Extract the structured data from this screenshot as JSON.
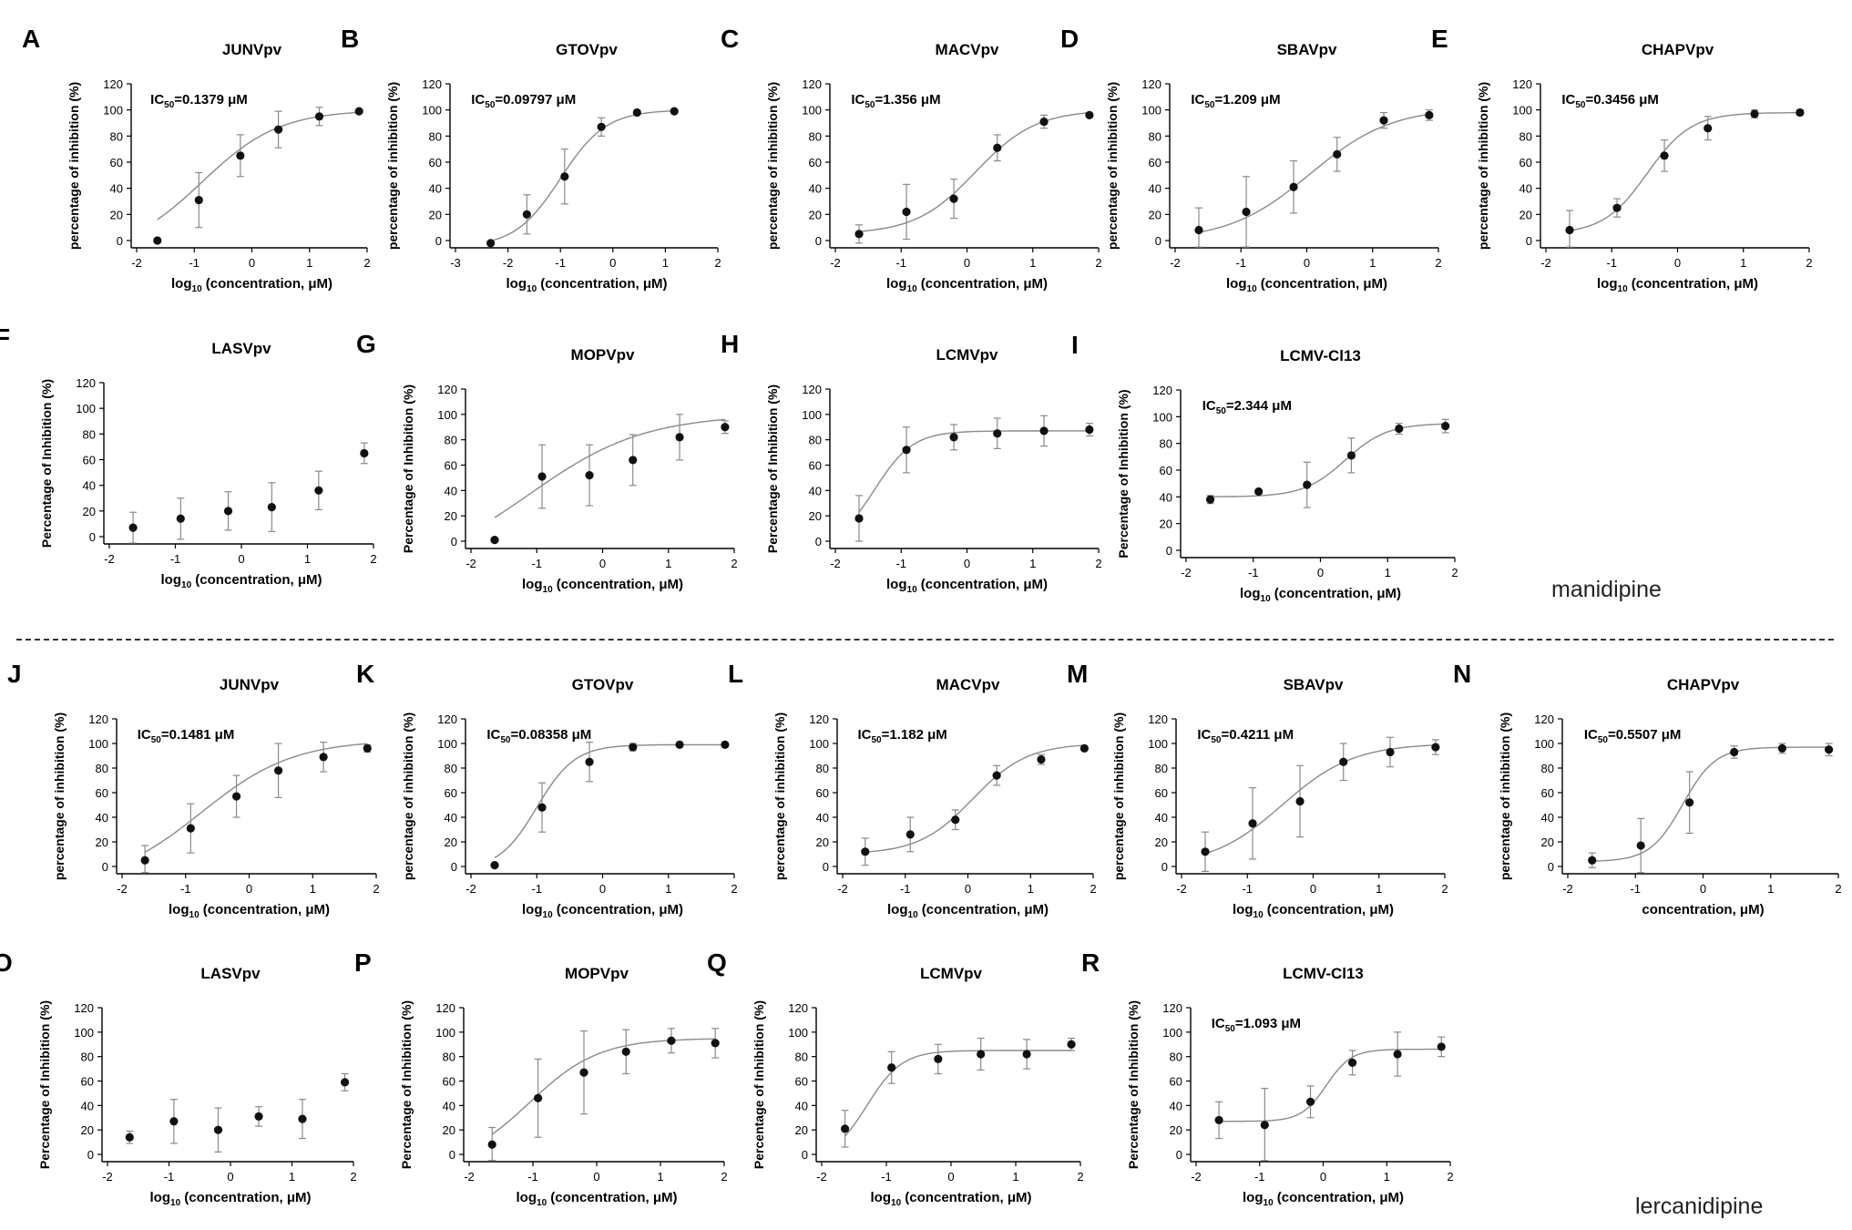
{
  "figure": {
    "drug_labels": {
      "top": "manidipine",
      "bottom": "lercanidipine"
    },
    "colors": {
      "curve": "#8a8a8a",
      "point": "#111111",
      "axis": "#000000",
      "errorbar": "#8a8a8a"
    }
  },
  "chart_data": [
    {
      "panel": "A",
      "type": "scatter",
      "title": "JUNVpv",
      "ylabel": "percentage of inhibition (%)",
      "xlabel": "log10 (concentration, μM)",
      "xlim": [
        -2,
        2
      ],
      "ylim": [
        -5,
        120
      ],
      "xticks": [
        -2,
        -1,
        0,
        1,
        2
      ],
      "yticks": [
        0,
        20,
        40,
        60,
        80,
        100,
        120
      ],
      "x": [
        -1.64,
        -0.92,
        -0.2,
        0.46,
        1.17,
        1.86
      ],
      "y": [
        0,
        31,
        65,
        85,
        95,
        99
      ],
      "err": [
        0,
        21,
        16,
        14,
        7,
        0
      ],
      "ic50_label": "IC",
      "ic50_sub": "50",
      "ic50_value": "=0.1379 μM",
      "fit": {
        "bottom": -10,
        "top": 100,
        "logec50": -0.86,
        "hill": 0.65
      }
    },
    {
      "panel": "B",
      "type": "scatter",
      "title": "GTOVpv",
      "ylabel": "percentage of inhibition (%)",
      "xlabel": "log10 (concentration, μM)",
      "xlim": [
        -3,
        2
      ],
      "ylim": [
        -5,
        120
      ],
      "xticks": [
        -3,
        -2,
        -1,
        0,
        1,
        2
      ],
      "yticks": [
        0,
        20,
        40,
        60,
        80,
        100,
        120
      ],
      "x": [
        -2.33,
        -1.64,
        -0.92,
        -0.22,
        0.46,
        1.17
      ],
      "y": [
        -2,
        20,
        49,
        87,
        98,
        99
      ],
      "err": [
        0,
        15,
        21,
        7,
        0,
        0
      ],
      "ic50_label": "IC",
      "ic50_sub": "50",
      "ic50_value": "=0.09797 μM",
      "fit": {
        "bottom": -5,
        "top": 100,
        "logec50": -1.0,
        "hill": 1.0
      }
    },
    {
      "panel": "C",
      "type": "scatter",
      "title": "MACVpv",
      "ylabel": "percentage of inhibition (%)",
      "xlabel": "log10 (concentration, μM)",
      "xlim": [
        -2,
        2
      ],
      "ylim": [
        -5,
        120
      ],
      "xticks": [
        -2,
        -1,
        0,
        1,
        2
      ],
      "yticks": [
        0,
        20,
        40,
        60,
        80,
        100,
        120
      ],
      "x": [
        -1.64,
        -0.92,
        -0.2,
        0.46,
        1.17,
        1.86
      ],
      "y": [
        5,
        22,
        32,
        71,
        91,
        96
      ],
      "err": [
        7,
        21,
        15,
        10,
        5,
        0
      ],
      "ic50_label": "IC",
      "ic50_sub": "50",
      "ic50_value": "=1.356 μM",
      "fit": {
        "bottom": 5,
        "top": 100,
        "logec50": 0.13,
        "hill": 0.95
      }
    },
    {
      "panel": "D",
      "type": "scatter",
      "title": "SBAVpv",
      "ylabel": "percentage of inhibition (%)",
      "xlabel": "log10 (concentration, μM)",
      "xlim": [
        -2,
        2
      ],
      "ylim": [
        -5,
        120
      ],
      "xticks": [
        -2,
        -1,
        0,
        1,
        2
      ],
      "yticks": [
        0,
        20,
        40,
        60,
        80,
        100,
        120
      ],
      "x": [
        -1.64,
        -0.92,
        -0.2,
        0.46,
        1.17,
        1.86
      ],
      "y": [
        8,
        22,
        41,
        66,
        92,
        96
      ],
      "err": [
        17,
        27,
        20,
        13,
        6,
        4
      ],
      "ic50_label": "IC",
      "ic50_sub": "50",
      "ic50_value": "=1.209 μM",
      "fit": {
        "bottom": 0,
        "top": 102,
        "logec50": 0.05,
        "hill": 0.7
      }
    },
    {
      "panel": "E",
      "type": "scatter",
      "title": "CHAPVpv",
      "ylabel": "percentage of inhibition (%)",
      "xlabel": "log10 (concentration, μM)",
      "xlim": [
        -2,
        2
      ],
      "ylim": [
        -5,
        120
      ],
      "xticks": [
        -2,
        -1,
        0,
        1,
        2
      ],
      "yticks": [
        0,
        20,
        40,
        60,
        80,
        100,
        120
      ],
      "x": [
        -1.64,
        -0.92,
        -0.2,
        0.46,
        1.17,
        1.86
      ],
      "y": [
        8,
        25,
        65,
        86,
        97,
        98
      ],
      "err": [
        15,
        7,
        12,
        9,
        3,
        2
      ],
      "ic50_label": "IC",
      "ic50_sub": "50",
      "ic50_value": "=0.3456 μM",
      "fit": {
        "bottom": 5,
        "top": 98,
        "logec50": -0.46,
        "hill": 1.3
      }
    },
    {
      "panel": "F",
      "type": "scatter",
      "title": "LASVpv",
      "ylabel": "Percentage of Inhibition (%)",
      "xlabel": "log10 (concentration, μM)",
      "xlim": [
        -2,
        2
      ],
      "ylim": [
        -5,
        120
      ],
      "xticks": [
        -2,
        -1,
        0,
        1,
        2
      ],
      "yticks": [
        0,
        20,
        40,
        60,
        80,
        100,
        120
      ],
      "x": [
        -1.64,
        -0.92,
        -0.2,
        0.46,
        1.17,
        1.86
      ],
      "y": [
        7,
        14,
        20,
        23,
        36,
        65
      ],
      "err": [
        12,
        16,
        15,
        19,
        15,
        8
      ],
      "ic50_label": "",
      "ic50_sub": "",
      "ic50_value": "",
      "fit": null
    },
    {
      "panel": "G",
      "type": "scatter",
      "title": "MOPVpv",
      "ylabel": "Percentage of Inhibition (%)",
      "xlabel": "log10 (concentration, μM)",
      "xlim": [
        -2,
        2
      ],
      "ylim": [
        -5,
        120
      ],
      "xticks": [
        -2,
        -1,
        0,
        1,
        2
      ],
      "yticks": [
        0,
        20,
        40,
        60,
        80,
        100,
        120
      ],
      "x": [
        -1.64,
        -0.92,
        -0.2,
        0.46,
        1.17,
        1.86
      ],
      "y": [
        1,
        51,
        52,
        64,
        82,
        90
      ],
      "err": [
        0,
        25,
        24,
        20,
        18,
        5
      ],
      "ic50_label": "",
      "ic50_sub": "",
      "ic50_value": "",
      "fit": {
        "bottom": -25,
        "top": 100,
        "logec50": -1.1,
        "hill": 0.5
      }
    },
    {
      "panel": "H",
      "type": "scatter",
      "title": "LCMVpv",
      "ylabel": "Percentage of Inhibition (%)",
      "xlabel": "log10 (concentration, μM)",
      "xlim": [
        -2,
        2
      ],
      "ylim": [
        -5,
        120
      ],
      "xticks": [
        -2,
        -1,
        0,
        1,
        2
      ],
      "yticks": [
        0,
        20,
        40,
        60,
        80,
        100,
        120
      ],
      "x": [
        -1.64,
        -0.92,
        -0.2,
        0.46,
        1.17,
        1.86
      ],
      "y": [
        18,
        72,
        82,
        85,
        87,
        88
      ],
      "err": [
        18,
        18,
        10,
        12,
        12,
        5
      ],
      "ic50_label": "",
      "ic50_sub": "",
      "ic50_value": "",
      "fit": {
        "bottom": -5,
        "top": 87,
        "logec50": -1.4,
        "hill": 1.5
      }
    },
    {
      "panel": "I",
      "type": "scatter",
      "title": "LCMV-Cl13",
      "ylabel": "Percentage of Inhibition (%)",
      "xlabel": "log10 (concentration, μM)",
      "xlim": [
        -2,
        2
      ],
      "ylim": [
        -5,
        120
      ],
      "xticks": [
        -2,
        -1,
        0,
        1,
        2
      ],
      "yticks": [
        0,
        20,
        40,
        60,
        80,
        100,
        120
      ],
      "x": [
        -1.64,
        -0.92,
        -0.2,
        0.46,
        1.17,
        1.86
      ],
      "y": [
        38,
        44,
        49,
        71,
        91,
        93
      ],
      "err": [
        3,
        0,
        17,
        13,
        4,
        5
      ],
      "ic50_label": "IC",
      "ic50_sub": "50",
      "ic50_value": "=2.344 μM",
      "fit": {
        "bottom": 40,
        "top": 95,
        "logec50": 0.37,
        "hill": 1.4
      }
    },
    {
      "panel": "J",
      "type": "scatter",
      "title": "JUNVpv",
      "ylabel": "percentage of inhibition (%)",
      "xlabel": "log10 (concentration, μM)",
      "xlim": [
        -2,
        2
      ],
      "ylim": [
        -5,
        120
      ],
      "xticks": [
        -2,
        -1,
        0,
        1,
        2
      ],
      "yticks": [
        0,
        20,
        40,
        60,
        80,
        100,
        120
      ],
      "x": [
        -1.64,
        -0.92,
        -0.2,
        0.46,
        1.17,
        1.86
      ],
      "y": [
        5,
        31,
        57,
        78,
        89,
        96
      ],
      "err": [
        12,
        20,
        17,
        22,
        12,
        3
      ],
      "ic50_label": "IC",
      "ic50_sub": "50",
      "ic50_value": "=0.1481 μM",
      "fit": {
        "bottom": -15,
        "top": 103,
        "logec50": -0.75,
        "hill": 0.6
      }
    },
    {
      "panel": "K",
      "type": "scatter",
      "title": "GTOVpv",
      "ylabel": "percentage of inhibition (%)",
      "xlabel": "log10 (concentration, μM)",
      "xlim": [
        -2,
        2
      ],
      "ylim": [
        -5,
        120
      ],
      "xticks": [
        -2,
        -1,
        0,
        1,
        2
      ],
      "yticks": [
        0,
        20,
        40,
        60,
        80,
        100,
        120
      ],
      "x": [
        -1.64,
        -0.92,
        -0.2,
        0.46,
        1.17,
        1.86
      ],
      "y": [
        1,
        48,
        85,
        97,
        99,
        99
      ],
      "err": [
        0,
        20,
        16,
        3,
        0,
        0
      ],
      "ic50_label": "IC",
      "ic50_sub": "50",
      "ic50_value": "=0.08358 μM",
      "fit": {
        "bottom": -3,
        "top": 99,
        "logec50": -1.0,
        "hill": 1.5
      }
    },
    {
      "panel": "L",
      "type": "scatter",
      "title": "MACVpv",
      "ylabel": "percentage of inhibition (%)",
      "xlabel": "log10 (concentration, μM)",
      "xlim": [
        -2,
        2
      ],
      "ylim": [
        -5,
        120
      ],
      "xticks": [
        -2,
        -1,
        0,
        1,
        2
      ],
      "yticks": [
        0,
        20,
        40,
        60,
        80,
        100,
        120
      ],
      "x": [
        -1.64,
        -0.92,
        -0.2,
        0.46,
        1.17,
        1.86
      ],
      "y": [
        12,
        26,
        38,
        74,
        87,
        96
      ],
      "err": [
        11,
        14,
        8,
        8,
        4,
        0
      ],
      "ic50_label": "IC",
      "ic50_sub": "50",
      "ic50_value": "=1.182 μM",
      "fit": {
        "bottom": 10,
        "top": 100,
        "logec50": 0.08,
        "hill": 1.0
      }
    },
    {
      "panel": "M",
      "type": "scatter",
      "title": "SBAVpv",
      "ylabel": "percentage of inhibition (%)",
      "xlabel": "log10 (concentration, μM)",
      "xlim": [
        -2,
        2
      ],
      "ylim": [
        -5,
        120
      ],
      "xticks": [
        -2,
        -1,
        0,
        1,
        2
      ],
      "yticks": [
        0,
        20,
        40,
        60,
        80,
        100,
        120
      ],
      "x": [
        -1.64,
        -0.92,
        -0.2,
        0.46,
        1.17,
        1.86
      ],
      "y": [
        12,
        35,
        53,
        85,
        93,
        97
      ],
      "err": [
        16,
        29,
        29,
        15,
        12,
        6
      ],
      "ic50_label": "IC",
      "ic50_sub": "50",
      "ic50_value": "=0.4211 μM",
      "fit": {
        "bottom": 0,
        "top": 100,
        "logec50": -0.47,
        "hill": 0.8
      }
    },
    {
      "panel": "N",
      "type": "scatter",
      "title": "CHAPVpv",
      "ylabel": "percentage of inhibition (%)",
      "xlabel": "concentration, μM)",
      "xlim": [
        -2,
        2
      ],
      "ylim": [
        -5,
        120
      ],
      "xticks": [
        -2,
        -1,
        0,
        1,
        2
      ],
      "yticks": [
        0,
        20,
        40,
        60,
        80,
        100,
        120
      ],
      "x": [
        -1.64,
        -0.92,
        -0.2,
        0.46,
        1.17,
        1.86
      ],
      "y": [
        5,
        17,
        52,
        93,
        96,
        95
      ],
      "err": [
        6,
        22,
        25,
        5,
        4,
        5
      ],
      "ic50_label": "IC",
      "ic50_sub": "50",
      "ic50_value": "=0.5507 μM",
      "fit": {
        "bottom": 4,
        "top": 97,
        "logec50": -0.3,
        "hill": 1.8
      }
    },
    {
      "panel": "O",
      "type": "scatter",
      "title": "LASVpv",
      "ylabel": "Percentage of Inhibition (%)",
      "xlabel": "log10 (concentration, μM)",
      "xlim": [
        -2,
        2
      ],
      "ylim": [
        -5,
        120
      ],
      "xticks": [
        -2,
        -1,
        0,
        1,
        2
      ],
      "yticks": [
        0,
        20,
        40,
        60,
        80,
        100,
        120
      ],
      "x": [
        -1.64,
        -0.92,
        -0.2,
        0.46,
        1.17,
        1.86
      ],
      "y": [
        14,
        27,
        20,
        31,
        29,
        59
      ],
      "err": [
        5,
        18,
        18,
        8,
        16,
        7
      ],
      "ic50_label": "",
      "ic50_sub": "",
      "ic50_value": "",
      "fit": null
    },
    {
      "panel": "P",
      "type": "scatter",
      "title": "MOPVpv",
      "ylabel": "Percentage of Inhibition (%)",
      "xlabel": "log10 (concentration, μM)",
      "xlim": [
        -2,
        2
      ],
      "ylim": [
        -5,
        120
      ],
      "xticks": [
        -2,
        -1,
        0,
        1,
        2
      ],
      "yticks": [
        0,
        20,
        40,
        60,
        80,
        100,
        120
      ],
      "x": [
        -1.64,
        -0.92,
        -0.2,
        0.46,
        1.17,
        1.86
      ],
      "y": [
        8,
        46,
        67,
        84,
        93,
        91
      ],
      "err": [
        14,
        32,
        34,
        18,
        10,
        12
      ],
      "ic50_label": "",
      "ic50_sub": "",
      "ic50_value": "",
      "fit": {
        "bottom": -10,
        "top": 95,
        "logec50": -1.05,
        "hill": 0.8
      }
    },
    {
      "panel": "Q",
      "type": "scatter",
      "title": "LCMVpv",
      "ylabel": "Percentage of Inhibition (%)",
      "xlabel": "log10 (concentration, μM)",
      "xlim": [
        -2,
        2
      ],
      "ylim": [
        -5,
        120
      ],
      "xticks": [
        -2,
        -1,
        0,
        1,
        2
      ],
      "yticks": [
        0,
        20,
        40,
        60,
        80,
        100,
        120
      ],
      "x": [
        -1.64,
        -0.92,
        -0.2,
        0.46,
        1.17,
        1.86
      ],
      "y": [
        21,
        71,
        78,
        82,
        82,
        90
      ],
      "err": [
        15,
        13,
        12,
        13,
        12,
        5
      ],
      "ic50_label": "",
      "ic50_sub": "",
      "ic50_value": "",
      "fit": {
        "bottom": -5,
        "top": 85,
        "logec50": -1.3,
        "hill": 1.6
      }
    },
    {
      "panel": "R",
      "type": "scatter",
      "title": "LCMV-Cl13",
      "ylabel": "Percentage of Inhibition (%)",
      "xlabel": "log10 (concentration, μM)",
      "xlim": [
        -2,
        2
      ],
      "ylim": [
        -5,
        120
      ],
      "xticks": [
        -2,
        -1,
        0,
        1,
        2
      ],
      "yticks": [
        0,
        20,
        40,
        60,
        80,
        100,
        120
      ],
      "x": [
        -1.64,
        -0.92,
        -0.2,
        0.46,
        1.17,
        1.86
      ],
      "y": [
        28,
        24,
        43,
        75,
        82,
        88
      ],
      "err": [
        15,
        30,
        13,
        10,
        18,
        8
      ],
      "ic50_label": "IC",
      "ic50_sub": "50",
      "ic50_value": "=1.093 μM",
      "fit": {
        "bottom": 27,
        "top": 86,
        "logec50": 0.05,
        "hill": 2.2
      }
    }
  ]
}
